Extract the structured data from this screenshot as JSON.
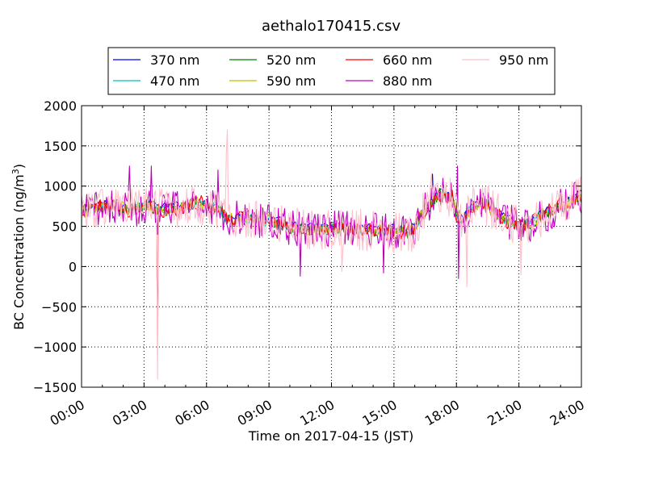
{
  "chart_data": {
    "type": "line",
    "title": "aethalo170415.csv",
    "xlabel": "Time on 2017-04-15 (JST)",
    "ylabel_prefix": "BC Concentration (ng/m",
    "ylabel_sup": "3",
    "ylabel_suffix": ")",
    "x_unit": "hours",
    "xlim": [
      0,
      24
    ],
    "ylim": [
      -1500,
      2000
    ],
    "x_ticks": [
      0,
      3,
      6,
      9,
      12,
      15,
      18,
      21,
      24
    ],
    "x_tick_labels": [
      "00:00",
      "03:00",
      "06:00",
      "09:00",
      "12:00",
      "15:00",
      "18:00",
      "21:00",
      "24:00"
    ],
    "y_ticks": [
      -1500,
      -1000,
      -500,
      0,
      500,
      1000,
      1500,
      2000
    ],
    "y_tick_labels": [
      "−1500",
      "−1000",
      "−500",
      "0",
      "500",
      "1000",
      "1500",
      "2000"
    ],
    "grid": true,
    "legend_placement": "above plot, 4 columns",
    "sample_interval_hours": 0.05,
    "series": [
      {
        "name": "370 nm",
        "color": "#0000ff"
      },
      {
        "name": "470 nm",
        "color": "#00bfbf"
      },
      {
        "name": "520 nm",
        "color": "#008000"
      },
      {
        "name": "590 nm",
        "color": "#bfbf00"
      },
      {
        "name": "660 nm",
        "color": "#ff0000"
      },
      {
        "name": "880 nm",
        "color": "#bf00bf"
      },
      {
        "name": "950 nm",
        "color": "#ffc0cb"
      }
    ],
    "base_profile": [
      [
        0,
        680
      ],
      [
        0.5,
        720
      ],
      [
        1.5,
        760
      ],
      [
        2.5,
        700
      ],
      [
        3.3,
        780
      ],
      [
        3.6,
        700
      ],
      [
        4.5,
        720
      ],
      [
        5.5,
        800
      ],
      [
        6.5,
        720
      ],
      [
        7.0,
        600
      ],
      [
        8.0,
        600
      ],
      [
        9.0,
        560
      ],
      [
        10.0,
        480
      ],
      [
        11.0,
        470
      ],
      [
        12.0,
        480
      ],
      [
        13.0,
        470
      ],
      [
        14.0,
        450
      ],
      [
        15.0,
        430
      ],
      [
        15.8,
        420
      ],
      [
        16.5,
        700
      ],
      [
        17.2,
        900
      ],
      [
        17.8,
        860
      ],
      [
        18.0,
        640
      ],
      [
        18.3,
        600
      ],
      [
        18.7,
        720
      ],
      [
        19.2,
        820
      ],
      [
        19.8,
        700
      ],
      [
        20.5,
        560
      ],
      [
        21.0,
        500
      ],
      [
        21.5,
        520
      ],
      [
        22.0,
        620
      ],
      [
        22.8,
        720
      ],
      [
        23.5,
        800
      ],
      [
        24.0,
        880
      ]
    ],
    "spikes": [
      {
        "series": "950 nm",
        "x": 3.65,
        "y": -1400
      },
      {
        "series": "660 nm",
        "x": 3.65,
        "y": -1050
      },
      {
        "series": "880 nm",
        "x": 3.65,
        "y": 400
      },
      {
        "series": "950 nm",
        "x": 7.0,
        "y": 1700
      },
      {
        "series": "950 nm",
        "x": 6.95,
        "y": 1400
      },
      {
        "series": "880 nm",
        "x": 2.3,
        "y": 1250
      },
      {
        "series": "880 nm",
        "x": 3.35,
        "y": 1250
      },
      {
        "series": "880 nm",
        "x": 6.55,
        "y": 1200
      },
      {
        "series": "880 nm",
        "x": 18.05,
        "y": 1250
      },
      {
        "series": "880 nm",
        "x": 18.1,
        "y": -150
      },
      {
        "series": "950 nm",
        "x": 18.5,
        "y": -250
      },
      {
        "series": "950 nm",
        "x": 21.1,
        "y": -100
      },
      {
        "series": "950 nm",
        "x": 16.8,
        "y": 1150
      },
      {
        "series": "370 nm",
        "x": 16.85,
        "y": 1150
      },
      {
        "series": "880 nm",
        "x": 10.5,
        "y": -120
      },
      {
        "series": "880 nm",
        "x": 14.5,
        "y": -80
      },
      {
        "series": "950 nm",
        "x": 12.5,
        "y": -60
      }
    ]
  }
}
